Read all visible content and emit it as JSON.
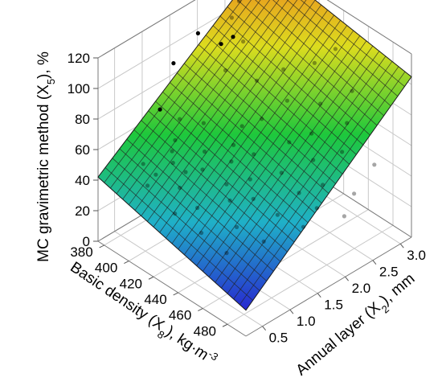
{
  "chart_data": {
    "type": "scatter",
    "title": "",
    "zlabel": {
      "pre": "MC gravimetric method (X",
      "sub": "5",
      "post": "), %"
    },
    "ylabel": {
      "pre": "Basic density (X",
      "sub": "8",
      "post": "), kg·m",
      "sup": "-3"
    },
    "xlabel": {
      "pre": "Annual layer (X",
      "sub": "2",
      "post": "), mm"
    },
    "xlim": [
      0.2,
      3.2
    ],
    "ylim": [
      375,
      495
    ],
    "zlim": [
      0,
      120
    ],
    "x_ticks": [
      "0.5",
      "1.0",
      "1.5",
      "2.0",
      "2.5",
      "3.0"
    ],
    "y_ticks": [
      "380",
      "400",
      "420",
      "440",
      "460",
      "480"
    ],
    "z_ticks": [
      "0",
      "20",
      "40",
      "60",
      "80",
      "100",
      "120"
    ],
    "surface": {
      "type": "fitted-plane",
      "corners": {
        "x_min_y_min": 42,
        "x_min_y_max": 17,
        "x_max_y_min": 130,
        "x_max_y_max": 105
      },
      "colormap": [
        "#2828d0",
        "#1fb0c8",
        "#1ec83c",
        "#dcdc1e",
        "#f07a1e"
      ]
    },
    "series": [
      {
        "points": [
          {
            "x": 2.9,
            "y": 380,
            "z": 117
          },
          {
            "x": 2.6,
            "y": 382,
            "z": 109
          },
          {
            "x": 2.4,
            "y": 385,
            "z": 104
          },
          {
            "x": 1.9,
            "y": 380,
            "z": 102
          },
          {
            "x": 2.2,
            "y": 395,
            "z": 101
          },
          {
            "x": 2.05,
            "y": 392,
            "z": 98
          },
          {
            "x": 2.45,
            "y": 392,
            "z": 91
          },
          {
            "x": 1.5,
            "y": 378,
            "z": 90
          },
          {
            "x": 1.95,
            "y": 400,
            "z": 87
          },
          {
            "x": 3.05,
            "y": 440,
            "z": 98
          },
          {
            "x": 2.6,
            "y": 418,
            "z": 83
          },
          {
            "x": 2.85,
            "y": 432,
            "z": 89
          },
          {
            "x": 2.25,
            "y": 412,
            "z": 80
          },
          {
            "x": 1.1,
            "y": 385,
            "z": 72
          },
          {
            "x": 1.3,
            "y": 392,
            "z": 65
          },
          {
            "x": 1.6,
            "y": 398,
            "z": 59
          },
          {
            "x": 2.4,
            "y": 430,
            "z": 73
          },
          {
            "x": 2.95,
            "y": 458,
            "z": 82
          },
          {
            "x": 1.15,
            "y": 395,
            "z": 56
          },
          {
            "x": 1.05,
            "y": 397,
            "z": 52
          },
          {
            "x": 1.85,
            "y": 418,
            "z": 62
          },
          {
            "x": 2.05,
            "y": 425,
            "z": 66
          },
          {
            "x": 2.6,
            "y": 448,
            "z": 76
          },
          {
            "x": 0.75,
            "y": 387,
            "z": 45
          },
          {
            "x": 1.0,
            "y": 400,
            "z": 47
          },
          {
            "x": 1.35,
            "y": 410,
            "z": 52
          },
          {
            "x": 1.65,
            "y": 420,
            "z": 55
          },
          {
            "x": 0.8,
            "y": 395,
            "z": 41
          },
          {
            "x": 1.05,
            "y": 408,
            "z": 44
          },
          {
            "x": 1.2,
            "y": 415,
            "z": 46
          },
          {
            "x": 1.5,
            "y": 425,
            "z": 50
          },
          {
            "x": 1.75,
            "y": 432,
            "z": 53
          },
          {
            "x": 2.1,
            "y": 445,
            "z": 60
          },
          {
            "x": 2.35,
            "y": 452,
            "z": 64
          },
          {
            "x": 2.7,
            "y": 465,
            "z": 70
          },
          {
            "x": 0.65,
            "y": 395,
            "z": 37
          },
          {
            "x": 0.9,
            "y": 410,
            "z": 38
          },
          {
            "x": 1.3,
            "y": 430,
            "z": 42
          },
          {
            "x": 1.55,
            "y": 438,
            "z": 44
          },
          {
            "x": 1.85,
            "y": 450,
            "z": 48
          },
          {
            "x": 2.2,
            "y": 460,
            "z": 54
          },
          {
            "x": 2.5,
            "y": 470,
            "z": 58
          },
          {
            "x": 0.7,
            "y": 415,
            "z": 28
          },
          {
            "x": 0.95,
            "y": 422,
            "z": 30
          },
          {
            "x": 1.25,
            "y": 435,
            "z": 35
          },
          {
            "x": 1.45,
            "y": 445,
            "z": 37
          },
          {
            "x": 1.9,
            "y": 462,
            "z": 40
          },
          {
            "x": 2.15,
            "y": 470,
            "z": 44
          },
          {
            "x": 2.75,
            "y": 485,
            "z": 52
          },
          {
            "x": 0.8,
            "y": 432,
            "z": 22
          },
          {
            "x": 1.15,
            "y": 445,
            "z": 25
          },
          {
            "x": 1.6,
            "y": 458,
            "z": 30
          },
          {
            "x": 2.0,
            "y": 472,
            "z": 33
          },
          {
            "x": 2.45,
            "y": 482,
            "z": 38
          },
          {
            "x": 0.9,
            "y": 448,
            "z": 15
          },
          {
            "x": 1.35,
            "y": 458,
            "z": 18
          },
          {
            "x": 1.8,
            "y": 470,
            "z": 24
          },
          {
            "x": 2.25,
            "y": 483,
            "z": 28
          }
        ]
      }
    ],
    "grid": true,
    "view": "3d-isometric"
  }
}
